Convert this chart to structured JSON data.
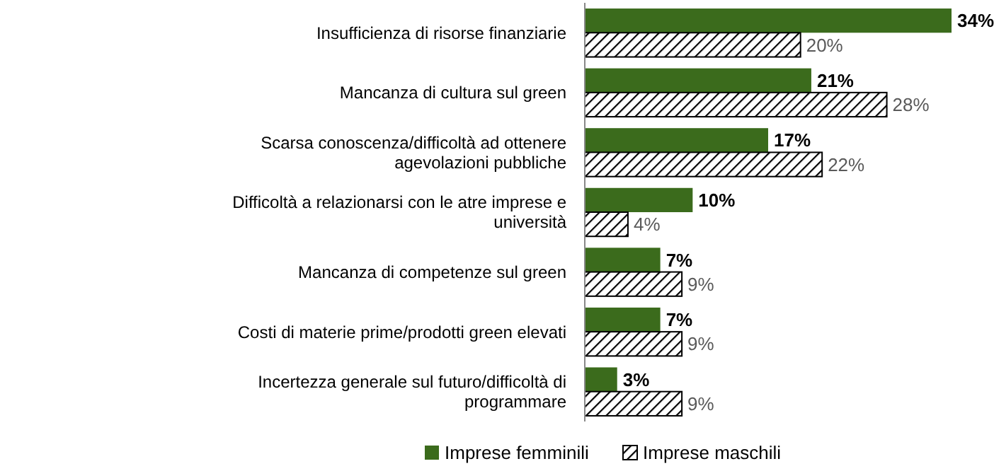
{
  "chart_data": {
    "type": "bar",
    "orientation": "horizontal",
    "legend": "bottom",
    "categories": [
      "Insufficienza di risorse finanziarie",
      "Mancanza di cultura sul green",
      "Scarsa conoscenza/difficoltà ad ottenere agevolazioni pubbliche",
      "Difficoltà a relazionarsi con le atre imprese e università",
      "Mancanza di competenze sul green",
      "Costi di materie prime/prodotti green elevati",
      "Incertezza generale sul futuro/difficoltà di programmare"
    ],
    "series": [
      {
        "name": "Imprese femminili",
        "color": "#3b6b1c",
        "values": [
          34,
          21,
          17,
          10,
          7,
          7,
          3
        ],
        "value_labels": [
          "34%",
          "21%",
          "17%",
          "10%",
          "7%",
          "7%",
          "3%"
        ]
      },
      {
        "name": "Imprese maschili",
        "color": "#000000",
        "values": [
          20,
          28,
          22,
          4,
          9,
          9,
          9
        ],
        "value_labels": [
          "20%",
          "28%",
          "22%",
          "4%",
          "9%",
          "9%",
          "9%"
        ]
      }
    ]
  }
}
